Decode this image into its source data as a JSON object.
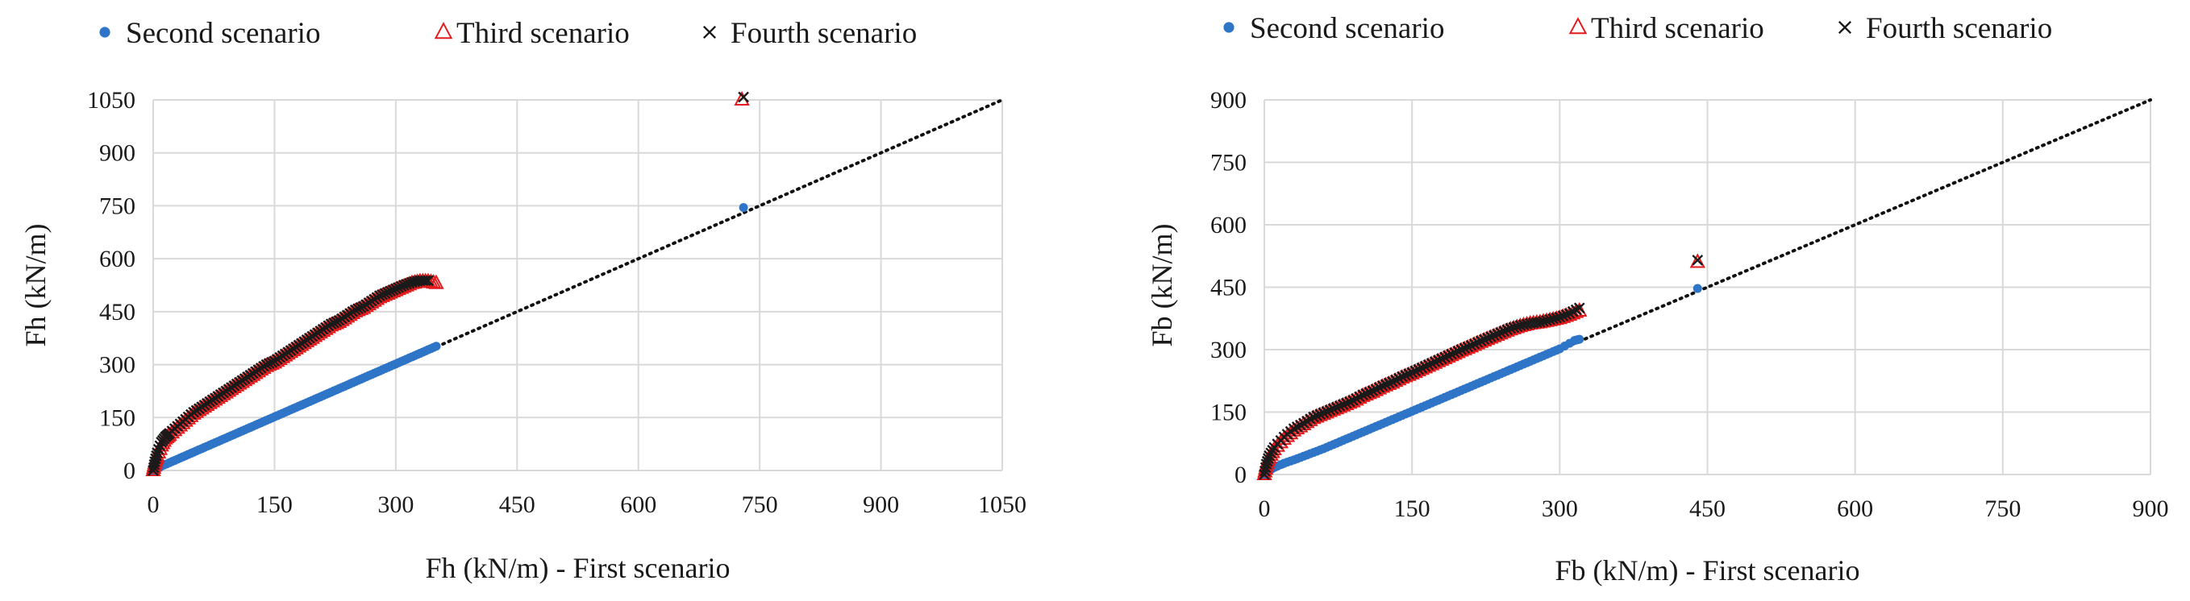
{
  "chart_data": [
    {
      "type": "scatter",
      "title": "",
      "xlabel": "Fh (kN/m) - First scenario",
      "ylabel": "Fh (kN/m)",
      "xlim": [
        0,
        1050
      ],
      "ylim": [
        0,
        1050
      ],
      "xticks": [
        0,
        150,
        300,
        450,
        600,
        750,
        900,
        1050
      ],
      "yticks": [
        0,
        150,
        300,
        450,
        600,
        750,
        900,
        1050
      ],
      "grid": true,
      "legend_position": "top",
      "reference_line": {
        "style": "dotted",
        "from": [
          0,
          0
        ],
        "to": [
          1050,
          1050
        ]
      },
      "series": [
        {
          "name": "Second scenario",
          "marker": "circle",
          "color": "#2e75c7",
          "points": [
            [
              0,
              0
            ],
            [
              5,
              5
            ],
            [
              10,
              12
            ],
            [
              20,
              22
            ],
            [
              30,
              32
            ],
            [
              40,
              42
            ],
            [
              50,
              52
            ],
            [
              60,
              62
            ],
            [
              70,
              72
            ],
            [
              80,
              82
            ],
            [
              90,
              92
            ],
            [
              100,
              102
            ],
            [
              110,
              112
            ],
            [
              120,
              122
            ],
            [
              130,
              132
            ],
            [
              140,
              142
            ],
            [
              150,
              152
            ],
            [
              160,
              162
            ],
            [
              170,
              172
            ],
            [
              180,
              182
            ],
            [
              190,
              192
            ],
            [
              200,
              202
            ],
            [
              210,
              212
            ],
            [
              220,
              222
            ],
            [
              230,
              232
            ],
            [
              240,
              242
            ],
            [
              250,
              252
            ],
            [
              260,
              262
            ],
            [
              270,
              272
            ],
            [
              280,
              282
            ],
            [
              290,
              292
            ],
            [
              300,
              302
            ],
            [
              310,
              312
            ],
            [
              320,
              322
            ],
            [
              330,
              332
            ],
            [
              340,
              342
            ],
            [
              350,
              352
            ],
            [
              730,
              745
            ]
          ]
        },
        {
          "name": "Third scenario",
          "marker": "triangle",
          "color": "#e31a1c",
          "points": [
            [
              0,
              0
            ],
            [
              2,
              20
            ],
            [
              5,
              40
            ],
            [
              10,
              70
            ],
            [
              15,
              90
            ],
            [
              20,
              100
            ],
            [
              30,
              120
            ],
            [
              40,
              140
            ],
            [
              50,
              160
            ],
            [
              60,
              175
            ],
            [
              70,
              190
            ],
            [
              80,
              205
            ],
            [
              90,
              220
            ],
            [
              100,
              235
            ],
            [
              110,
              250
            ],
            [
              120,
              265
            ],
            [
              130,
              280
            ],
            [
              140,
              295
            ],
            [
              150,
              305
            ],
            [
              160,
              320
            ],
            [
              170,
              335
            ],
            [
              180,
              350
            ],
            [
              190,
              365
            ],
            [
              200,
              380
            ],
            [
              210,
              395
            ],
            [
              220,
              410
            ],
            [
              230,
              420
            ],
            [
              240,
              435
            ],
            [
              250,
              450
            ],
            [
              260,
              460
            ],
            [
              270,
              475
            ],
            [
              280,
              490
            ],
            [
              290,
              500
            ],
            [
              300,
              510
            ],
            [
              310,
              520
            ],
            [
              320,
              530
            ],
            [
              330,
              535
            ],
            [
              340,
              535
            ],
            [
              350,
              530
            ],
            [
              728,
              1050
            ]
          ]
        },
        {
          "name": "Fourth scenario",
          "marker": "x",
          "color": "#1a1a1a",
          "points": [
            [
              0,
              0
            ],
            [
              2,
              25
            ],
            [
              5,
              50
            ],
            [
              10,
              80
            ],
            [
              15,
              95
            ],
            [
              20,
              105
            ],
            [
              30,
              125
            ],
            [
              40,
              145
            ],
            [
              50,
              165
            ],
            [
              60,
              180
            ],
            [
              70,
              195
            ],
            [
              80,
              210
            ],
            [
              90,
              225
            ],
            [
              100,
              240
            ],
            [
              110,
              255
            ],
            [
              120,
              270
            ],
            [
              130,
              285
            ],
            [
              140,
              300
            ],
            [
              150,
              310
            ],
            [
              160,
              325
            ],
            [
              170,
              340
            ],
            [
              180,
              355
            ],
            [
              190,
              370
            ],
            [
              200,
              385
            ],
            [
              210,
              400
            ],
            [
              220,
              415
            ],
            [
              230,
              425
            ],
            [
              240,
              440
            ],
            [
              250,
              455
            ],
            [
              260,
              465
            ],
            [
              270,
              480
            ],
            [
              280,
              495
            ],
            [
              290,
              505
            ],
            [
              300,
              515
            ],
            [
              310,
              525
            ],
            [
              320,
              533
            ],
            [
              330,
              538
            ],
            [
              340,
              538
            ],
            [
              730,
              1058
            ]
          ]
        }
      ]
    },
    {
      "type": "scatter",
      "title": "",
      "xlabel": "Fb (kN/m) - First scenario",
      "ylabel": "Fb (kN/m)",
      "xlim": [
        0,
        900
      ],
      "ylim": [
        0,
        900
      ],
      "xticks": [
        0,
        150,
        300,
        450,
        600,
        750,
        900
      ],
      "yticks": [
        0,
        150,
        300,
        450,
        600,
        750,
        900
      ],
      "grid": true,
      "legend_position": "top",
      "reference_line": {
        "style": "dotted",
        "from": [
          0,
          0
        ],
        "to": [
          900,
          900
        ]
      },
      "series": [
        {
          "name": "Second scenario",
          "marker": "circle",
          "color": "#2e75c7",
          "points": [
            [
              0,
              0
            ],
            [
              5,
              10
            ],
            [
              10,
              17
            ],
            [
              20,
              27
            ],
            [
              30,
              35
            ],
            [
              40,
              44
            ],
            [
              50,
              53
            ],
            [
              60,
              62
            ],
            [
              70,
              72
            ],
            [
              80,
              82
            ],
            [
              90,
              92
            ],
            [
              100,
              102
            ],
            [
              110,
              112
            ],
            [
              120,
              122
            ],
            [
              130,
              132
            ],
            [
              140,
              142
            ],
            [
              150,
              152
            ],
            [
              160,
              162
            ],
            [
              170,
              172
            ],
            [
              180,
              182
            ],
            [
              190,
              192
            ],
            [
              200,
              202
            ],
            [
              210,
              212
            ],
            [
              220,
              222
            ],
            [
              230,
              232
            ],
            [
              240,
              242
            ],
            [
              250,
              252
            ],
            [
              260,
              262
            ],
            [
              270,
              272
            ],
            [
              280,
              282
            ],
            [
              290,
              292
            ],
            [
              300,
              302
            ],
            [
              315,
              322
            ],
            [
              320,
              325
            ],
            [
              440,
              447
            ]
          ]
        },
        {
          "name": "Third scenario",
          "marker": "triangle",
          "color": "#e31a1c",
          "points": [
            [
              0,
              0
            ],
            [
              2,
              20
            ],
            [
              5,
              40
            ],
            [
              10,
              60
            ],
            [
              20,
              85
            ],
            [
              30,
              105
            ],
            [
              40,
              120
            ],
            [
              50,
              135
            ],
            [
              60,
              145
            ],
            [
              70,
              155
            ],
            [
              80,
              165
            ],
            [
              90,
              175
            ],
            [
              100,
              188
            ],
            [
              110,
              198
            ],
            [
              120,
              210
            ],
            [
              130,
              220
            ],
            [
              140,
              232
            ],
            [
              150,
              242
            ],
            [
              160,
              253
            ],
            [
              170,
              264
            ],
            [
              180,
              275
            ],
            [
              190,
              286
            ],
            [
              200,
              297
            ],
            [
              210,
              307
            ],
            [
              220,
              318
            ],
            [
              230,
              328
            ],
            [
              240,
              338
            ],
            [
              250,
              348
            ],
            [
              260,
              356
            ],
            [
              270,
              362
            ],
            [
              280,
              365
            ],
            [
              290,
              370
            ],
            [
              300,
              375
            ],
            [
              310,
              383
            ],
            [
              320,
              393
            ],
            [
              440,
              510
            ]
          ]
        },
        {
          "name": "Fourth scenario",
          "marker": "x",
          "color": "#1a1a1a",
          "points": [
            [
              0,
              0
            ],
            [
              2,
              25
            ],
            [
              5,
              45
            ],
            [
              10,
              65
            ],
            [
              20,
              90
            ],
            [
              30,
              110
            ],
            [
              40,
              123
            ],
            [
              50,
              138
            ],
            [
              60,
              148
            ],
            [
              70,
              158
            ],
            [
              80,
              168
            ],
            [
              90,
              178
            ],
            [
              100,
              191
            ],
            [
              110,
              201
            ],
            [
              120,
              213
            ],
            [
              130,
              223
            ],
            [
              140,
              235
            ],
            [
              150,
              245
            ],
            [
              160,
              256
            ],
            [
              170,
              267
            ],
            [
              180,
              278
            ],
            [
              190,
              289
            ],
            [
              200,
              300
            ],
            [
              210,
              310
            ],
            [
              220,
              321
            ],
            [
              230,
              331
            ],
            [
              240,
              341
            ],
            [
              250,
              351
            ],
            [
              260,
              358
            ],
            [
              270,
              363
            ],
            [
              280,
              366
            ],
            [
              290,
              372
            ],
            [
              300,
              378
            ],
            [
              310,
              387
            ],
            [
              320,
              400
            ],
            [
              440,
              515
            ]
          ]
        }
      ]
    }
  ]
}
